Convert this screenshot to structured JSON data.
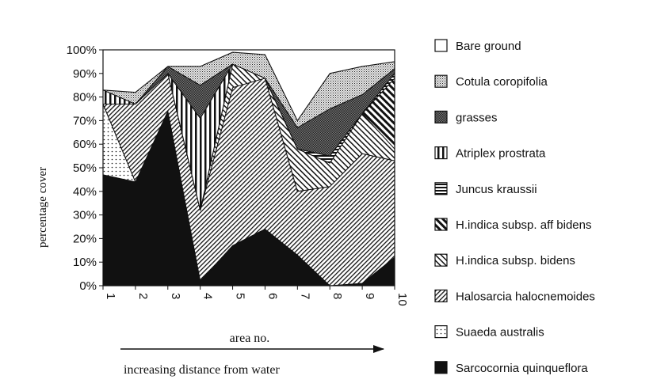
{
  "chart_data": {
    "type": "area",
    "title": "",
    "xlabel": "area no.",
    "ylabel": "percentage cover",
    "x": [
      1,
      2,
      3,
      4,
      5,
      6,
      7,
      8,
      9,
      10
    ],
    "x_tick_labels": [
      "1",
      "2",
      "3",
      "4",
      "5",
      "6",
      "7",
      "8",
      "9",
      "10"
    ],
    "ylim": [
      0,
      100
    ],
    "y_tick_labels": [
      "0%",
      "10%",
      "20%",
      "30%",
      "40%",
      "50%",
      "60%",
      "70%",
      "80%",
      "90%",
      "100%"
    ],
    "stacked": true,
    "grid": false,
    "legend_position": "right",
    "annotation": "increasing distance from water",
    "series": [
      {
        "name": "Sarcocornia quinqueflora",
        "pattern": "solid-black",
        "values": [
          47,
          44,
          74,
          2,
          17,
          24,
          13,
          0,
          1,
          12
        ]
      },
      {
        "name": "Suaeda australis",
        "pattern": "dots",
        "values": [
          30,
          0,
          0,
          0,
          0,
          0,
          0,
          0,
          0,
          0
        ]
      },
      {
        "name": "Halosarcia halocnemoides",
        "pattern": "dense-diagonal",
        "values": [
          0,
          33,
          16,
          30,
          67,
          64,
          27,
          42,
          55,
          41
        ]
      },
      {
        "name": "H.indica subsp. bidens",
        "pattern": "back-diagonal",
        "values": [
          0,
          0,
          0,
          0,
          10,
          0,
          18,
          10,
          17,
          5
        ]
      },
      {
        "name": "H.indica subsp. aff bidens",
        "pattern": "wide-back-diagonal",
        "values": [
          0,
          0,
          0,
          0,
          0,
          0,
          0,
          0,
          0,
          30
        ]
      },
      {
        "name": "Juncus kraussii",
        "pattern": "horizontal",
        "values": [
          0,
          0,
          0,
          0,
          0,
          0,
          0,
          3,
          0,
          2
        ]
      },
      {
        "name": "Atriplex prostrata",
        "pattern": "vertical",
        "values": [
          6,
          0,
          0,
          39,
          0,
          0,
          0,
          0,
          0,
          0
        ]
      },
      {
        "name": "grasses",
        "pattern": "crosshatch",
        "values": [
          0,
          0,
          3,
          14,
          0,
          0,
          9,
          20,
          8,
          2
        ]
      },
      {
        "name": "Cotula coropifolia",
        "pattern": "fine-dots",
        "values": [
          0,
          5,
          0,
          8,
          5,
          10,
          3,
          15,
          12,
          3
        ]
      },
      {
        "name": "Bare ground",
        "pattern": "blank",
        "values": [
          17,
          18,
          7,
          7,
          1,
          2,
          30,
          10,
          7,
          5
        ]
      }
    ]
  }
}
